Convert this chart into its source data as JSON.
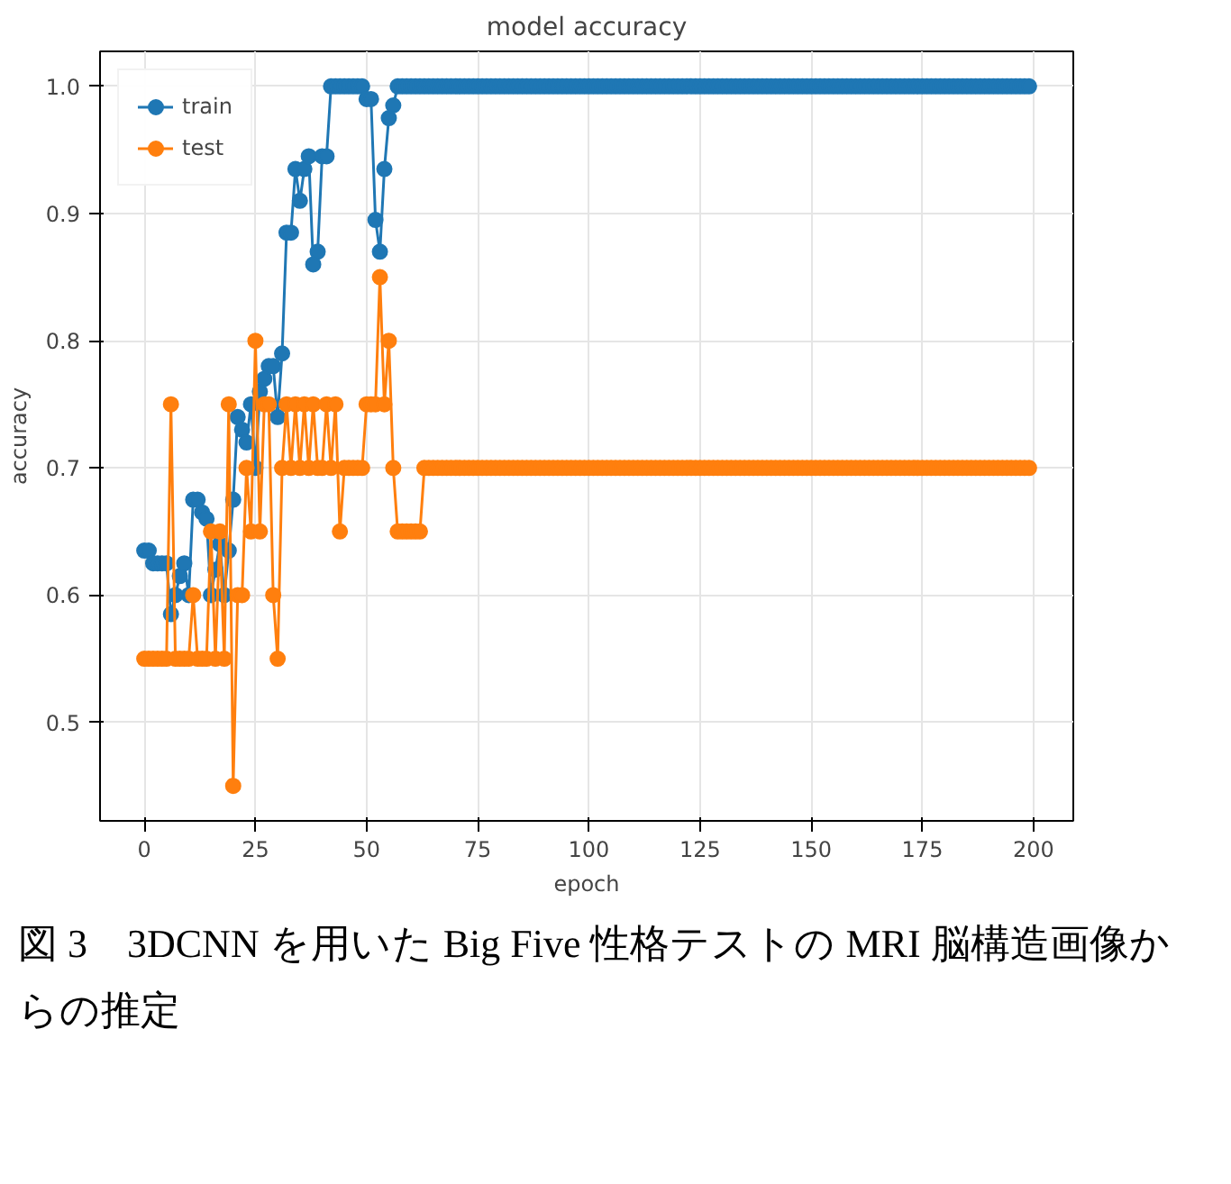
{
  "chart_data": {
    "type": "line",
    "title": "model accuracy",
    "xlabel": "epoch",
    "ylabel": "accuracy",
    "annotations": [
      "図 3　3DCNN を用いた Big Five 性格テストの MRI 脳構造画像からの推定"
    ],
    "x": [
      0,
      1,
      2,
      3,
      4,
      5,
      6,
      7,
      8,
      9,
      10,
      11,
      12,
      13,
      14,
      15,
      16,
      17,
      18,
      19,
      20,
      21,
      22,
      23,
      24,
      25,
      26,
      27,
      28,
      29,
      30,
      31,
      32,
      33,
      34,
      35,
      36,
      37,
      38,
      39,
      40,
      41,
      42,
      43,
      44,
      45,
      46,
      47,
      48,
      49,
      50,
      51,
      52,
      53,
      54,
      55,
      56,
      57,
      58,
      59,
      60,
      61,
      62,
      63,
      64,
      65,
      66,
      67,
      68,
      69,
      70,
      71,
      72,
      73,
      74,
      75,
      76,
      77,
      78,
      79,
      80,
      81,
      82,
      83,
      84,
      85,
      86,
      87,
      88,
      89,
      90,
      91,
      92,
      93,
      94,
      95,
      96,
      97,
      98,
      99,
      100,
      101,
      102,
      103,
      104,
      105,
      106,
      107,
      108,
      109,
      110,
      111,
      112,
      113,
      114,
      115,
      116,
      117,
      118,
      119,
      120,
      121,
      122,
      123,
      124,
      125,
      126,
      127,
      128,
      129,
      130,
      131,
      132,
      133,
      134,
      135,
      136,
      137,
      138,
      139,
      140,
      141,
      142,
      143,
      144,
      145,
      146,
      147,
      148,
      149,
      150,
      151,
      152,
      153,
      154,
      155,
      156,
      157,
      158,
      159,
      160,
      161,
      162,
      163,
      164,
      165,
      166,
      167,
      168,
      169,
      170,
      171,
      172,
      173,
      174,
      175,
      176,
      177,
      178,
      179,
      180,
      181,
      182,
      183,
      184,
      185,
      186,
      187,
      188,
      189,
      190,
      191,
      192,
      193,
      194,
      195,
      196,
      197,
      198,
      199
    ],
    "series": [
      {
        "name": "train",
        "color": "#1f77b4",
        "values": [
          0.635,
          0.635,
          0.625,
          0.625,
          0.625,
          0.625,
          0.585,
          0.6,
          0.615,
          0.625,
          0.6,
          0.675,
          0.675,
          0.665,
          0.66,
          0.6,
          0.62,
          0.64,
          0.6,
          0.635,
          0.675,
          0.74,
          0.73,
          0.72,
          0.75,
          0.7,
          0.76,
          0.77,
          0.78,
          0.78,
          0.74,
          0.79,
          0.885,
          0.885,
          0.935,
          0.91,
          0.935,
          0.945,
          0.86,
          0.87,
          0.945,
          0.945,
          1.0,
          1.0,
          1.0,
          1.0,
          1.0,
          1.0,
          1.0,
          1.0,
          0.99,
          0.99,
          0.895,
          0.87,
          0.935,
          0.975,
          0.985,
          1.0,
          1.0,
          1.0,
          1.0,
          1.0,
          1.0,
          1.0,
          1.0,
          1.0,
          1.0,
          1.0,
          1.0,
          1.0,
          1.0,
          1.0,
          1.0,
          1.0,
          1.0,
          1.0,
          1.0,
          1.0,
          1.0,
          1.0,
          1.0,
          1.0,
          1.0,
          1.0,
          1.0,
          1.0,
          1.0,
          1.0,
          1.0,
          1.0,
          1.0,
          1.0,
          1.0,
          1.0,
          1.0,
          1.0,
          1.0,
          1.0,
          1.0,
          1.0,
          1.0,
          1.0,
          1.0,
          1.0,
          1.0,
          1.0,
          1.0,
          1.0,
          1.0,
          1.0,
          1.0,
          1.0,
          1.0,
          1.0,
          1.0,
          1.0,
          1.0,
          1.0,
          1.0,
          1.0,
          1.0,
          1.0,
          1.0,
          1.0,
          1.0,
          1.0,
          1.0,
          1.0,
          1.0,
          1.0,
          1.0,
          1.0,
          1.0,
          1.0,
          1.0,
          1.0,
          1.0,
          1.0,
          1.0,
          1.0,
          1.0,
          1.0,
          1.0,
          1.0,
          1.0,
          1.0,
          1.0,
          1.0,
          1.0,
          1.0,
          1.0,
          1.0,
          1.0,
          1.0,
          1.0,
          1.0,
          1.0,
          1.0,
          1.0,
          1.0,
          1.0,
          1.0,
          1.0,
          1.0,
          1.0,
          1.0,
          1.0,
          1.0,
          1.0,
          1.0,
          1.0,
          1.0,
          1.0,
          1.0,
          1.0,
          1.0,
          1.0,
          1.0,
          1.0,
          1.0,
          1.0,
          1.0,
          1.0,
          1.0,
          1.0,
          1.0,
          1.0,
          1.0,
          1.0,
          1.0,
          1.0,
          1.0,
          1.0,
          1.0,
          1.0,
          1.0,
          1.0,
          1.0,
          1.0,
          1.0
        ]
      },
      {
        "name": "test",
        "color": "#ff7f0e",
        "values": [
          0.55,
          0.55,
          0.55,
          0.55,
          0.55,
          0.55,
          0.75,
          0.55,
          0.55,
          0.55,
          0.55,
          0.6,
          0.55,
          0.55,
          0.55,
          0.65,
          0.55,
          0.65,
          0.55,
          0.75,
          0.45,
          0.6,
          0.6,
          0.7,
          0.65,
          0.8,
          0.65,
          0.75,
          0.75,
          0.6,
          0.55,
          0.7,
          0.75,
          0.7,
          0.75,
          0.7,
          0.75,
          0.7,
          0.75,
          0.7,
          0.7,
          0.75,
          0.7,
          0.75,
          0.65,
          0.7,
          0.7,
          0.7,
          0.7,
          0.7,
          0.75,
          0.75,
          0.75,
          0.85,
          0.75,
          0.8,
          0.7,
          0.65,
          0.65,
          0.65,
          0.65,
          0.65,
          0.65,
          0.7,
          0.7,
          0.7,
          0.7,
          0.7,
          0.7,
          0.7,
          0.7,
          0.7,
          0.7,
          0.7,
          0.7,
          0.7,
          0.7,
          0.7,
          0.7,
          0.7,
          0.7,
          0.7,
          0.7,
          0.7,
          0.7,
          0.7,
          0.7,
          0.7,
          0.7,
          0.7,
          0.7,
          0.7,
          0.7,
          0.7,
          0.7,
          0.7,
          0.7,
          0.7,
          0.7,
          0.7,
          0.7,
          0.7,
          0.7,
          0.7,
          0.7,
          0.7,
          0.7,
          0.7,
          0.7,
          0.7,
          0.7,
          0.7,
          0.7,
          0.7,
          0.7,
          0.7,
          0.7,
          0.7,
          0.7,
          0.7,
          0.7,
          0.7,
          0.7,
          0.7,
          0.7,
          0.7,
          0.7,
          0.7,
          0.7,
          0.7,
          0.7,
          0.7,
          0.7,
          0.7,
          0.7,
          0.7,
          0.7,
          0.7,
          0.7,
          0.7,
          0.7,
          0.7,
          0.7,
          0.7,
          0.7,
          0.7,
          0.7,
          0.7,
          0.7,
          0.7,
          0.7,
          0.7,
          0.7,
          0.7,
          0.7,
          0.7,
          0.7,
          0.7,
          0.7,
          0.7,
          0.7,
          0.7,
          0.7,
          0.7,
          0.7,
          0.7,
          0.7,
          0.7,
          0.7,
          0.7,
          0.7,
          0.7,
          0.7,
          0.7,
          0.7,
          0.7,
          0.7,
          0.7,
          0.7,
          0.7,
          0.7,
          0.7,
          0.7,
          0.7,
          0.7,
          0.7,
          0.7,
          0.7,
          0.7,
          0.7,
          0.7,
          0.7,
          0.7,
          0.7,
          0.7,
          0.7,
          0.7,
          0.7,
          0.7,
          0.7
        ]
      }
    ],
    "xlim": [
      -9.95,
      208.95
    ],
    "xticks": [
      0,
      25,
      50,
      75,
      100,
      125,
      150,
      175,
      200
    ],
    "ylim": [
      0.4225,
      1.0275
    ],
    "yticks": [
      {
        "value": 0.5,
        "label": "0.5"
      },
      {
        "value": 0.6,
        "label": "0.6"
      },
      {
        "value": 0.7,
        "label": "0.7"
      },
      {
        "value": 0.8,
        "label": "0.8"
      },
      {
        "value": 0.9,
        "label": "0.9"
      },
      {
        "value": 1.0,
        "label": "1.0"
      }
    ],
    "grid": true,
    "legend": "top left",
    "marker": "circle",
    "line_style": "solid"
  }
}
